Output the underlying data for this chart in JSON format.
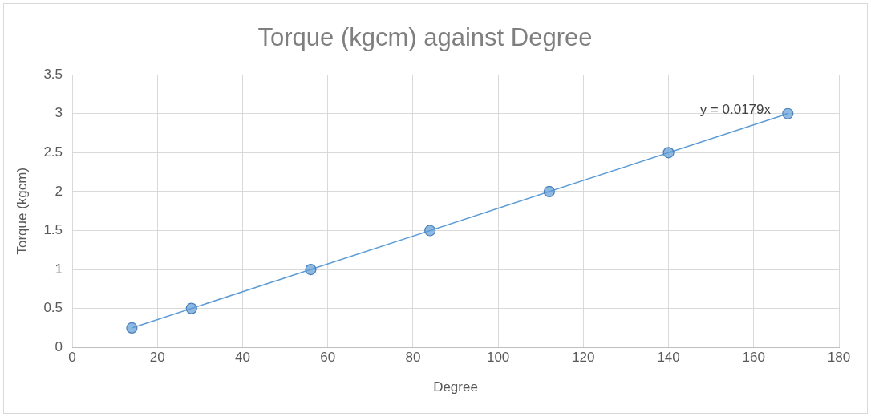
{
  "chart_data": {
    "type": "scatter",
    "title": "Torque (kgcm) against Degree",
    "xlabel": "Degree",
    "ylabel": "Torque (kgcm)",
    "x": [
      14,
      28,
      56,
      84,
      112,
      140,
      168
    ],
    "series": [
      {
        "type": "scatter",
        "color": "#5b9bd5",
        "values": [
          0.25,
          0.5,
          1,
          1.5,
          2,
          2.5,
          3
        ]
      },
      {
        "type": "line",
        "color": "#5b9bd5",
        "x": [
          14,
          168
        ],
        "values": [
          0.25,
          3.0
        ],
        "marker": "none"
      }
    ],
    "annotations": [
      "y = 0.0179x"
    ],
    "xlim": [
      0,
      180
    ],
    "xticks": [
      0,
      20,
      40,
      60,
      80,
      100,
      120,
      140,
      160,
      180
    ],
    "ylim": [
      0,
      3.5
    ],
    "yticks": [
      0,
      0.5,
      1,
      1.5,
      2,
      2.5,
      3,
      3.5
    ],
    "grid": true,
    "legend": false,
    "marker": "circle"
  }
}
